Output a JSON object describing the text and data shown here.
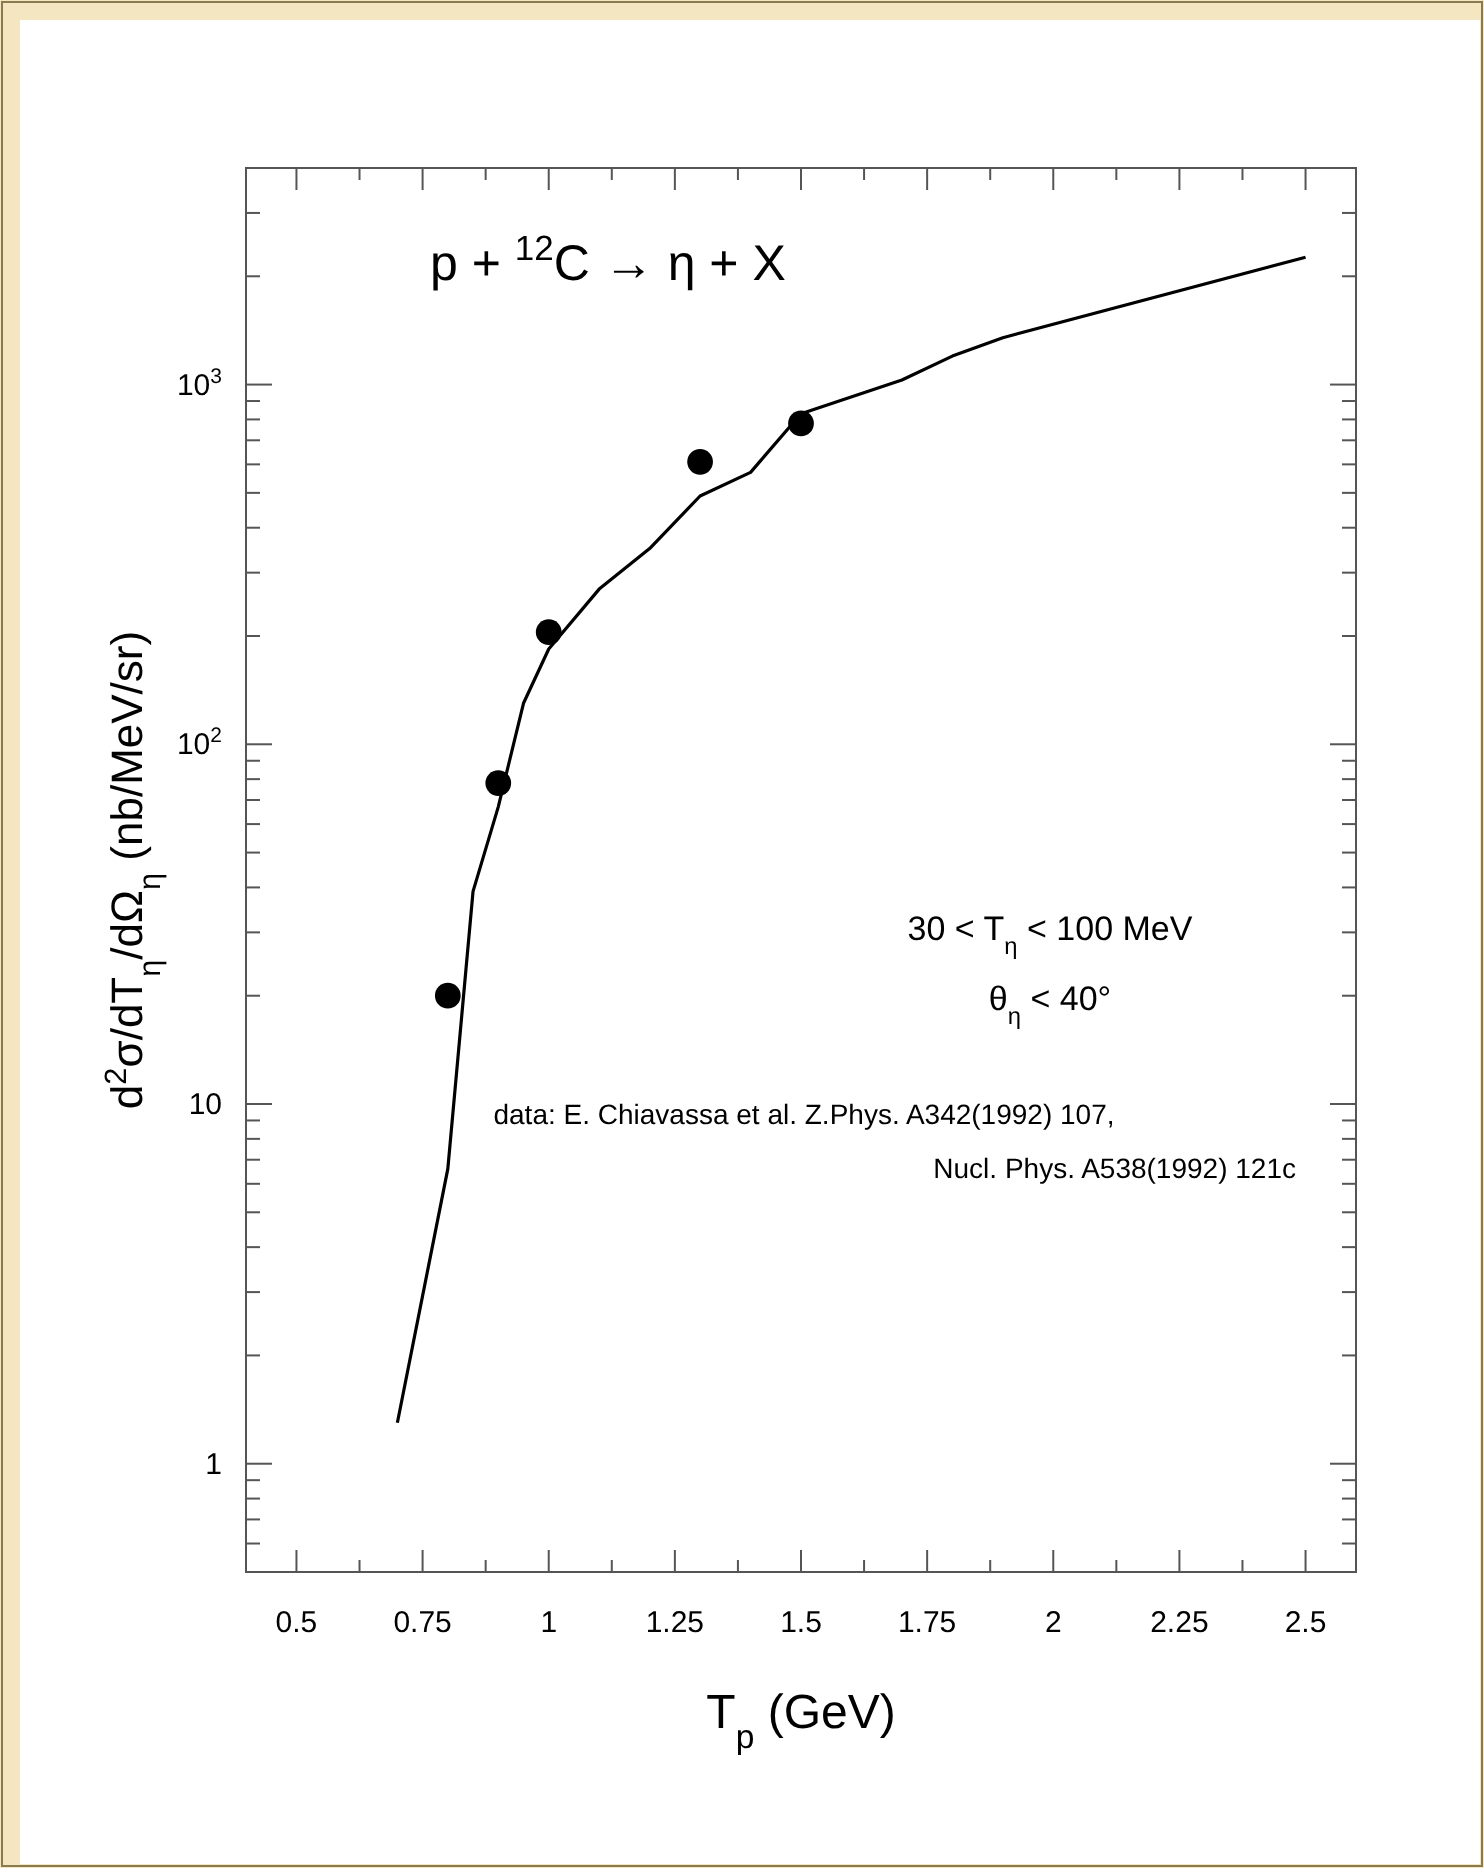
{
  "chart_data": {
    "type": "line",
    "title": "p + $^{12}$C → η + X",
    "xlabel": "T$_{p}$ (GeV)",
    "ylabel": "d$^{2}$σ/dT$_{η}$/dΩ$_{η}$ (nb/MeV/sr)",
    "log": "y",
    "grid": false,
    "xlim": [
      0.4,
      2.6
    ],
    "ylim": [
      0.5,
      4000
    ],
    "xticks": [
      {
        "value": 0.5,
        "label": "0.5"
      },
      {
        "value": 0.625,
        "label": null
      },
      {
        "value": 0.75,
        "label": "0.75"
      },
      {
        "value": 0.875,
        "label": null
      },
      {
        "value": 1,
        "label": "1"
      },
      {
        "value": 1.125,
        "label": null
      },
      {
        "value": 1.25,
        "label": "1.25"
      },
      {
        "value": 1.375,
        "label": null
      },
      {
        "value": 1.5,
        "label": "1.5"
      },
      {
        "value": 1.625,
        "label": null
      },
      {
        "value": 1.75,
        "label": "1.75"
      },
      {
        "value": 1.875,
        "label": null
      },
      {
        "value": 2,
        "label": "2"
      },
      {
        "value": 2.125,
        "label": null
      },
      {
        "value": 2.25,
        "label": "2.25"
      },
      {
        "value": 2.375,
        "label": null
      },
      {
        "value": 2.5,
        "label": "2.5"
      }
    ],
    "yticks": [
      {
        "value": 0.6,
        "label": null
      },
      {
        "value": 0.7,
        "label": null
      },
      {
        "value": 0.8,
        "label": null
      },
      {
        "value": 0.9,
        "label": null
      },
      1,
      {
        "value": 2,
        "label": null
      },
      {
        "value": 3,
        "label": null
      },
      {
        "value": 4,
        "label": null
      },
      {
        "value": 5,
        "label": null
      },
      {
        "value": 6,
        "label": null
      },
      {
        "value": 7,
        "label": null
      },
      {
        "value": 8,
        "label": null
      },
      {
        "value": 9,
        "label": null
      },
      10,
      {
        "value": 20,
        "label": null
      },
      {
        "value": 30,
        "label": null
      },
      {
        "value": 40,
        "label": null
      },
      {
        "value": 50,
        "label": null
      },
      {
        "value": 60,
        "label": null
      },
      {
        "value": 70,
        "label": null
      },
      {
        "value": 80,
        "label": null
      },
      {
        "value": 90,
        "label": null
      },
      {
        "value": 100,
        "label": "10$^{2}$"
      },
      {
        "value": 200,
        "label": null
      },
      {
        "value": 300,
        "label": null
      },
      {
        "value": 400,
        "label": null
      },
      {
        "value": 500,
        "label": null
      },
      {
        "value": 600,
        "label": null
      },
      {
        "value": 700,
        "label": null
      },
      {
        "value": 800,
        "label": null
      },
      {
        "value": 900,
        "label": null
      },
      {
        "value": 1000,
        "label": "10$^{3}$"
      },
      {
        "value": 2000,
        "label": null
      },
      {
        "value": 3000,
        "label": null
      }
    ],
    "series": [
      {
        "color": "#000000",
        "line_style": "solid",
        "marker": "none",
        "x": [
          0.7,
          0.8,
          0.85,
          0.9,
          0.95,
          1.0,
          1.1,
          1.2,
          1.3,
          1.4,
          1.5,
          1.7,
          1.8,
          1.9,
          2.5
        ],
        "values": [
          1.3,
          6.6,
          39,
          67,
          130,
          184,
          270,
          350,
          490,
          570,
          830,
          1030,
          1200,
          1350,
          2260
        ]
      },
      {
        "type": "scatter",
        "color": "#000000",
        "marker": "circle",
        "x": [
          0.8,
          0.9,
          1.0,
          1.3,
          1.5
        ],
        "values": [
          20,
          78,
          205,
          610,
          780
        ]
      }
    ],
    "annotations": [
      "30 < T$_{η}$ < 100 MeV",
      "θ$_{η}$ < 40°",
      "data: E. Chiavassa et al. Z.Phys. A342(1992) 107,",
      "Nucl. Phys. A538(1992) 121c"
    ]
  }
}
